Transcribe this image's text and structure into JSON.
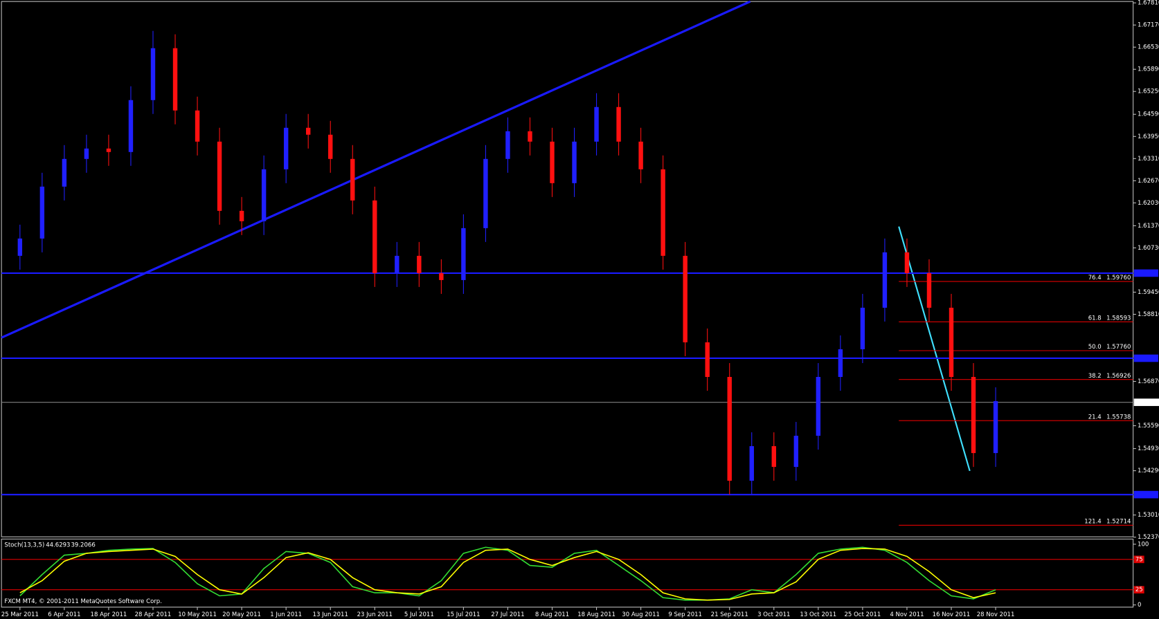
{
  "chart_data": {
    "type": "candlestick",
    "up_color": "#2020ff",
    "down_color": "#ff1010",
    "categories": [
      "25 Mar 2011",
      null,
      "6 Apr 2011",
      null,
      "18 Apr 2011",
      null,
      "28 Apr 2011",
      null,
      "10 May 2011",
      null,
      "20 May 2011",
      null,
      "1 Jun 2011",
      null,
      "13 Jun 2011",
      null,
      "23 Jun 2011",
      null,
      "5 Jul 2011",
      null,
      "15 Jul 2011",
      null,
      "27 Jul 2011",
      null,
      "8 Aug 2011",
      null,
      "18 Aug 2011",
      null,
      "30 Aug 2011",
      null,
      "9 Sep 2011",
      null,
      "21 Sep 2011",
      null,
      "3 Oct 2011",
      null,
      "13 Oct 2011",
      null,
      "25 Oct 2011",
      null,
      "4 Nov 2011",
      null,
      "16 Nov 2011",
      null,
      "28 Nov 2011"
    ],
    "open": [
      1.605,
      1.61,
      1.625,
      1.633,
      1.636,
      1.635,
      1.65,
      1.665,
      1.647,
      1.638,
      1.618,
      1.615,
      1.63,
      1.642,
      1.64,
      1.633,
      1.621,
      1.6,
      1.605,
      1.6,
      1.598,
      1.613,
      1.633,
      1.641,
      1.638,
      1.626,
      1.638,
      1.648,
      1.638,
      1.63,
      1.605,
      1.58,
      1.57,
      1.54,
      1.55,
      1.544,
      1.553,
      1.57,
      1.578,
      1.59,
      1.606,
      1.6,
      1.59,
      1.57,
      1.548
    ],
    "high": [
      1.614,
      1.629,
      1.637,
      1.64,
      1.64,
      1.654,
      1.67,
      1.669,
      1.651,
      1.642,
      1.622,
      1.634,
      1.646,
      1.646,
      1.644,
      1.637,
      1.625,
      1.609,
      1.609,
      1.604,
      1.617,
      1.637,
      1.645,
      1.645,
      1.642,
      1.642,
      1.652,
      1.652,
      1.642,
      1.634,
      1.609,
      1.584,
      1.574,
      1.554,
      1.554,
      1.557,
      1.574,
      1.582,
      1.594,
      1.61,
      1.61,
      1.604,
      1.594,
      1.574,
      1.567
    ],
    "low": [
      1.601,
      1.606,
      1.621,
      1.629,
      1.631,
      1.631,
      1.646,
      1.643,
      1.634,
      1.614,
      1.611,
      1.611,
      1.626,
      1.636,
      1.629,
      1.617,
      1.596,
      1.596,
      1.596,
      1.594,
      1.594,
      1.609,
      1.629,
      1.634,
      1.622,
      1.622,
      1.634,
      1.634,
      1.626,
      1.601,
      1.576,
      1.566,
      1.536,
      1.536,
      1.54,
      1.54,
      1.549,
      1.566,
      1.574,
      1.586,
      1.596,
      1.586,
      1.566,
      1.544,
      1.544
    ],
    "close": [
      1.61,
      1.625,
      1.633,
      1.636,
      1.635,
      1.65,
      1.665,
      1.647,
      1.638,
      1.618,
      1.615,
      1.63,
      1.642,
      1.64,
      1.633,
      1.621,
      1.6,
      1.605,
      1.6,
      1.598,
      1.613,
      1.633,
      1.641,
      1.638,
      1.626,
      1.638,
      1.648,
      1.638,
      1.63,
      1.605,
      1.58,
      1.57,
      1.54,
      1.55,
      1.544,
      1.553,
      1.57,
      1.578,
      1.59,
      1.606,
      1.6,
      1.59,
      1.57,
      1.548,
      1.563
    ],
    "ylim": [
      1.5238,
      1.6785
    ],
    "yticks": [
      {
        "value": 1.6781,
        "label": "1.67810"
      },
      {
        "value": 1.6717,
        "label": "1.67170"
      },
      {
        "value": 1.6653,
        "label": "1.66530"
      },
      {
        "value": 1.6589,
        "label": "1.65890"
      },
      {
        "value": 1.6525,
        "label": "1.65250"
      },
      {
        "value": 1.6459,
        "label": "1.64590"
      },
      {
        "value": 1.6395,
        "label": "1.63950"
      },
      {
        "value": 1.6331,
        "label": "1.63310"
      },
      {
        "value": 1.6267,
        "label": "1.62670"
      },
      {
        "value": 1.6203,
        "label": "1.62030"
      },
      {
        "value": 1.6137,
        "label": "1.61370"
      },
      {
        "value": 1.6073,
        "label": "1.60730"
      },
      {
        "value": 1.5945,
        "label": "1.59450"
      },
      {
        "value": 1.5881,
        "label": "1.58810"
      },
      {
        "value": 1.5687,
        "label": "1.56870"
      },
      {
        "value": 1.5559,
        "label": "1.55590"
      },
      {
        "value": 1.5493,
        "label": "1.54930"
      },
      {
        "value": 1.5429,
        "label": "1.54290"
      },
      {
        "value": 1.5301,
        "label": "1.53010"
      },
      {
        "value": 1.5237,
        "label": "1.52370"
      }
    ],
    "current_price": 1.56267,
    "levels": [
      1.6,
      1.5754,
      1.536
    ],
    "fibonacci": [
      {
        "level": "76.4",
        "price": {
          "value": 1.5976,
          "label": "1.59760"
        }
      },
      {
        "level": "61.8",
        "price": 1.58593
      },
      {
        "level": "50.0",
        "price": {
          "value": 1.5776,
          "label": "1.57760"
        }
      },
      {
        "level": "38.2",
        "price": 1.56926
      },
      {
        "level": "21.4",
        "price": 1.55738
      },
      {
        "level": "121.4",
        "price": 1.52714
      }
    ],
    "stochastic": {
      "name": "Stoch(13,3,5)",
      "main_value": 44.6293,
      "signal_value": 39.2066,
      "ylim": [
        0,
        100
      ],
      "yticks": [
        0,
        100
      ],
      "levels": [
        75,
        25
      ],
      "series": [
        {
          "color": "#33dd33",
          "values": [
            15,
            50,
            82,
            85,
            90,
            92,
            93,
            70,
            35,
            15,
            18,
            60,
            88,
            85,
            70,
            30,
            20,
            20,
            15,
            40,
            85,
            95,
            90,
            65,
            62,
            85,
            90,
            65,
            40,
            12,
            8,
            8,
            10,
            25,
            20,
            50,
            85,
            92,
            95,
            90,
            70,
            40,
            15,
            10,
            25
          ]
        },
        {
          "color": "#ffff00",
          "values": [
            20,
            40,
            72,
            85,
            88,
            90,
            92,
            80,
            50,
            25,
            18,
            45,
            78,
            86,
            75,
            45,
            25,
            20,
            18,
            30,
            70,
            90,
            92,
            75,
            65,
            78,
            88,
            75,
            50,
            20,
            10,
            8,
            9,
            18,
            20,
            38,
            75,
            90,
            93,
            92,
            80,
            55,
            25,
            12,
            20
          ]
        }
      ]
    },
    "watermark": "FXCM MT4, © 2001-2011 MetaQuotes Software Corp."
  }
}
